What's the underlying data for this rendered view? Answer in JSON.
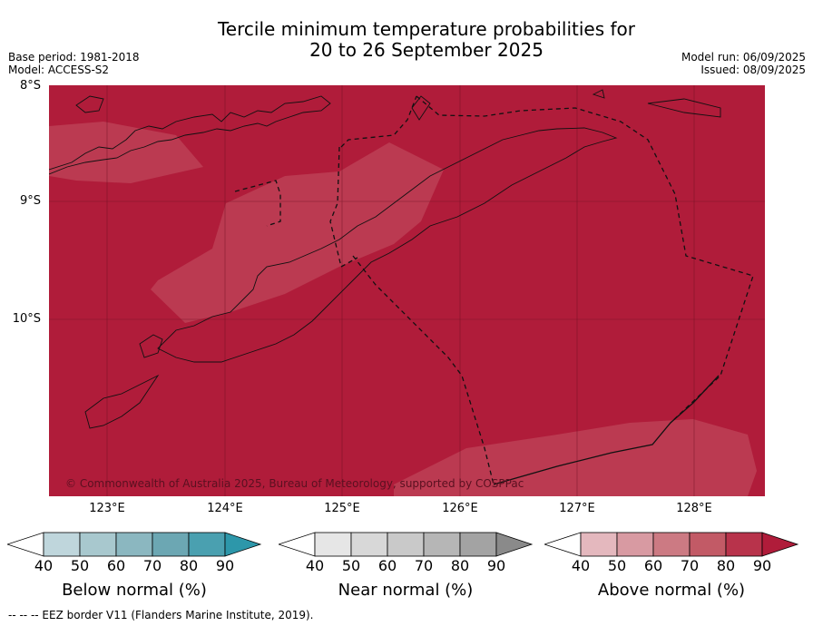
{
  "title_line1": "Tercile minimum temperature probabilities for",
  "title_line2": "20 to 26 September 2025",
  "meta_left": {
    "base_period": "Base period: 1981-2018",
    "model": "Model: ACCESS-S2"
  },
  "meta_right": {
    "model_run": "Model run: 06/09/2025",
    "issued": "Issued: 08/09/2025"
  },
  "lat_labels": [
    "8°S",
    "9°S",
    "10°S"
  ],
  "lon_labels": [
    "123°E",
    "124°E",
    "125°E",
    "126°E",
    "127°E",
    "128°E"
  ],
  "copyright": "© Commonwealth of Australia 2025, Bureau of Meteorology, supported by COSPPac",
  "colorbars": {
    "below": {
      "title": "Below normal (%)",
      "ticks": [
        "40",
        "50",
        "60",
        "70",
        "80",
        "90"
      ],
      "colors": [
        "#bfd6dc",
        "#a8c8ce",
        "#8bb7c0",
        "#6ca7b3",
        "#4aa0b0",
        "#2d97aa"
      ]
    },
    "near": {
      "title": "Near normal (%)",
      "ticks": [
        "40",
        "50",
        "60",
        "70",
        "80",
        "90"
      ],
      "colors": [
        "#e6e6e6",
        "#d8d8d8",
        "#c9c9c9",
        "#b6b6b6",
        "#a3a3a3",
        "#8a8a8a"
      ]
    },
    "above": {
      "title": "Above normal (%)",
      "ticks": [
        "40",
        "50",
        "60",
        "70",
        "80",
        "90"
      ],
      "colors": [
        "#e4b8be",
        "#d89aa2",
        "#cc7a83",
        "#c25a66",
        "#b8334b",
        "#b01c3a"
      ]
    }
  },
  "footer": "--  --  -- EEZ border V11 (Flanders Marine Institute, 2019).",
  "map_colors": {
    "dominant": "#b01c3a",
    "lighter": "#bb3a51"
  }
}
